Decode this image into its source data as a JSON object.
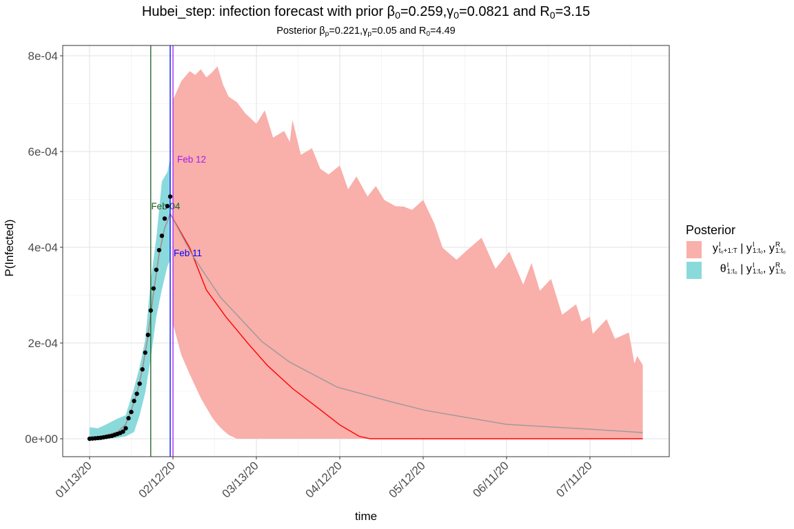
{
  "title_parts": [
    {
      "text": "Hubei_step: infection forecast with prior β"
    },
    {
      "sub": "0"
    },
    {
      "text": "=0.259,γ"
    },
    {
      "sub": "0"
    },
    {
      "text": "=0.0821 and R"
    },
    {
      "sub": "0"
    },
    {
      "text": "=3.15"
    }
  ],
  "subtitle_parts": [
    {
      "text": "Posterior β"
    },
    {
      "sub": "p"
    },
    {
      "text": "=0.221,γ"
    },
    {
      "sub": "p"
    },
    {
      "text": "=0.05 and R"
    },
    {
      "sub": "0"
    },
    {
      "text": "=4.49"
    }
  ],
  "legend": {
    "title": "Posterior",
    "entries": [
      {
        "color": "#F9AFAA",
        "parts": [
          {
            "text": "y"
          },
          {
            "sup": "I",
            "sub": "t0+1:T"
          },
          {
            "text": " | y"
          },
          {
            "sup": "I",
            "sub": "1:t0"
          },
          {
            "text": ", y"
          },
          {
            "sup": "R",
            "sub": "1:t0"
          }
        ]
      },
      {
        "color": "#8ADADC",
        "parts": [
          {
            "text": "θ"
          },
          {
            "sup": "I",
            "sub": "1:t0"
          },
          {
            "text": " | y"
          },
          {
            "sup": "I",
            "sub": "1:t0"
          },
          {
            "text": ", y"
          },
          {
            "sup": "R",
            "sub": "1:t0"
          }
        ]
      }
    ]
  },
  "chart_data": {
    "type": "line",
    "xlabel": "time",
    "ylabel": "P(Infected)",
    "x_origin": "2020-01-13",
    "xlim": [
      "2020-01-03",
      "2020-08-08"
    ],
    "ylim": [
      -3.74e-05,
      0.000822
    ],
    "x_ticks": [
      {
        "date": "2020-01-13",
        "label": "01/13/20"
      },
      {
        "date": "2020-02-12",
        "label": "02/12/20"
      },
      {
        "date": "2020-03-13",
        "label": "03/13/20"
      },
      {
        "date": "2020-04-12",
        "label": "04/12/20"
      },
      {
        "date": "2020-05-12",
        "label": "05/12/20"
      },
      {
        "date": "2020-06-11",
        "label": "06/11/20"
      },
      {
        "date": "2020-07-11",
        "label": "07/11/20"
      }
    ],
    "y_ticks": [
      {
        "value": 0,
        "label": "0e+00"
      },
      {
        "value": 0.0002,
        "label": "2e-04"
      },
      {
        "value": 0.0004,
        "label": "4e-04"
      },
      {
        "value": 0.0006,
        "label": "6e-04"
      },
      {
        "value": 0.0008,
        "label": "8e-04"
      }
    ],
    "grid": true,
    "legend_placement": "right",
    "colors": {
      "forecast_band": "#F9AFAA",
      "fit_band": "#8ADADC",
      "median_line": "#FF0000",
      "mean_line": "#999999",
      "points": "#000000"
    },
    "vlines": [
      {
        "date": "2020-02-04",
        "label": "Feb 04",
        "color": "#1B5E20"
      },
      {
        "date": "2020-02-11",
        "label": "Feb 11",
        "color": "#0000FF"
      },
      {
        "date": "2020-02-12",
        "label": "Feb 12",
        "color": "#A020F0"
      }
    ],
    "fit_band": {
      "x": [
        "2020-01-13",
        "2020-01-16",
        "2020-01-19",
        "2020-01-23",
        "2020-01-26",
        "2020-01-29",
        "2020-01-31",
        "2020-02-02",
        "2020-02-04",
        "2020-02-06",
        "2020-02-08",
        "2020-02-10",
        "2020-02-11"
      ],
      "upper": [
        2.4e-05,
        2.2e-05,
        3e-05,
        4.2e-05,
        4.9e-05,
        0.000106,
        0.00015,
        0.000207,
        0.00033,
        0.00042,
        0.000538,
        0.000557,
        0.000586
      ],
      "lower": [
        0,
        0,
        0,
        2e-06,
        5e-06,
        1.4e-05,
        4.9e-05,
        9.6e-05,
        0.000168,
        0.000255,
        0.000312,
        0.00036,
        0.000373
      ]
    },
    "forecast_band": {
      "x": [
        "2020-02-12",
        "2020-02-15",
        "2020-02-18",
        "2020-02-20",
        "2020-02-22",
        "2020-02-24",
        "2020-02-26",
        "2020-02-28",
        "2020-03-01",
        "2020-03-03",
        "2020-03-06",
        "2020-03-09",
        "2020-03-13",
        "2020-03-16",
        "2020-03-19",
        "2020-03-23",
        "2020-03-25",
        "2020-03-26",
        "2020-03-29",
        "2020-04-02",
        "2020-04-05",
        "2020-04-08",
        "2020-04-12",
        "2020-04-15",
        "2020-04-18",
        "2020-04-22",
        "2020-04-25",
        "2020-04-28",
        "2020-05-02",
        "2020-05-05",
        "2020-05-08",
        "2020-05-12",
        "2020-05-16",
        "2020-05-19",
        "2020-05-24",
        "2020-05-28",
        "2020-06-02",
        "2020-06-07",
        "2020-06-12",
        "2020-06-17",
        "2020-06-20",
        "2020-06-23",
        "2020-06-27",
        "2020-07-01",
        "2020-07-06",
        "2020-07-08",
        "2020-07-11",
        "2020-07-12",
        "2020-07-17",
        "2020-07-20",
        "2020-07-25",
        "2020-07-27",
        "2020-07-28",
        "2020-07-30"
      ],
      "upper": [
        0.000708,
        0.000747,
        0.000768,
        0.00076,
        0.000772,
        0.000755,
        0.000765,
        0.000778,
        0.00074,
        0.000715,
        0.000703,
        0.00068,
        0.000658,
        0.000686,
        0.000629,
        0.000643,
        0.00062,
        0.000666,
        0.000593,
        0.000607,
        0.000564,
        0.000552,
        0.000571,
        0.000521,
        0.000548,
        0.000506,
        0.000528,
        0.000499,
        0.000486,
        0.000485,
        0.000478,
        0.000499,
        0.00045,
        0.000399,
        0.000374,
        0.000395,
        0.00042,
        0.000355,
        0.000391,
        0.000322,
        0.000367,
        0.000309,
        0.000334,
        0.000259,
        0.000281,
        0.000245,
        0.000255,
        0.000219,
        0.00025,
        0.000209,
        0.000222,
        0.000157,
        0.000173,
        0.000154
      ],
      "lower": [
        0.00024,
        0.000175,
        0.000135,
        0.00011,
        8.5e-05,
        6.5e-05,
        4.5e-05,
        3e-05,
        1.8e-05,
        8e-06,
        0,
        0,
        0,
        0,
        0,
        0,
        0,
        0,
        0,
        0,
        0,
        0,
        0,
        0,
        0,
        0,
        0,
        0,
        0,
        0,
        0,
        0,
        0,
        0,
        0,
        0,
        0,
        0,
        0,
        0,
        0,
        0,
        0,
        0,
        0,
        0,
        0,
        0,
        0,
        0,
        0,
        0,
        0,
        0
      ]
    },
    "series": [
      {
        "key": "median",
        "x": [
          "2020-01-13",
          "2020-01-18",
          "2020-01-23",
          "2020-01-26",
          "2020-01-28",
          "2020-01-30",
          "2020-02-01",
          "2020-02-03",
          "2020-02-05",
          "2020-02-07",
          "2020-02-09",
          "2020-02-11",
          "2020-02-18",
          "2020-02-24",
          "2020-03-02",
          "2020-03-10",
          "2020-03-17",
          "2020-03-26",
          "2020-04-04",
          "2020-04-12",
          "2020-04-19",
          "2020-04-23",
          "2020-07-30"
        ],
        "y": [
          2e-06,
          6e-06,
          1.4e-05,
          3e-05,
          6e-05,
          9.5e-05,
          0.000145,
          0.000215,
          0.000305,
          0.000385,
          0.00044,
          0.00047,
          0.000399,
          0.000311,
          0.000255,
          0.000199,
          0.000153,
          0.000105,
          6.5e-05,
          2.9e-05,
          5e-06,
          0,
          0
        ]
      },
      {
        "key": "mean",
        "x": [
          "2020-01-13",
          "2020-01-18",
          "2020-01-23",
          "2020-01-26",
          "2020-01-28",
          "2020-01-30",
          "2020-02-01",
          "2020-02-03",
          "2020-02-05",
          "2020-02-07",
          "2020-02-09",
          "2020-02-11",
          "2020-02-19",
          "2020-02-29",
          "2020-03-15",
          "2020-03-25",
          "2020-04-11",
          "2020-04-30",
          "2020-05-13",
          "2020-06-11",
          "2020-07-11",
          "2020-07-30"
        ],
        "y": [
          2e-06,
          6e-06,
          1.4e-05,
          3e-05,
          6e-05,
          9.5e-05,
          0.000145,
          0.000215,
          0.000305,
          0.000385,
          0.00044,
          0.00047,
          0.000383,
          0.000296,
          0.000203,
          0.00016,
          0.000108,
          7.8e-05,
          5.9e-05,
          3e-05,
          2e-05,
          1.3e-05
        ]
      }
    ],
    "observed": {
      "x": [
        "2020-01-13",
        "2020-01-14",
        "2020-01-15",
        "2020-01-16",
        "2020-01-17",
        "2020-01-18",
        "2020-01-19",
        "2020-01-20",
        "2020-01-21",
        "2020-01-22",
        "2020-01-23",
        "2020-01-24",
        "2020-01-25",
        "2020-01-26",
        "2020-01-27",
        "2020-01-28",
        "2020-01-29",
        "2020-01-30",
        "2020-01-31",
        "2020-02-01",
        "2020-02-02",
        "2020-02-03",
        "2020-02-04",
        "2020-02-05",
        "2020-02-06",
        "2020-02-07",
        "2020-02-08",
        "2020-02-09",
        "2020-02-10",
        "2020-02-11"
      ],
      "y": [
        0,
        5e-07,
        1e-06,
        1.5e-06,
        2e-06,
        3e-06,
        4e-06,
        5e-06,
        6e-06,
        8e-06,
        1e-05,
        1.2e-05,
        1.5e-05,
        2.2e-05,
        4.3e-05,
        5.6e-05,
        7.9e-05,
        9.4e-05,
        0.000115,
        0.000145,
        0.00018,
        0.000217,
        0.000268,
        0.000314,
        0.000353,
        0.000394,
        0.000424,
        0.00046,
        0.000486,
        0.000506
      ]
    }
  }
}
